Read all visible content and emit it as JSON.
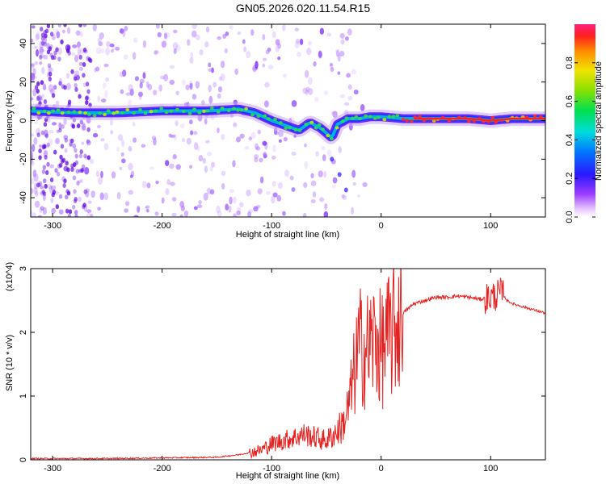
{
  "page_title": "GN05.2026.020.11.54.R15",
  "colors": {
    "snr_line": "#e52222",
    "spectrogram_low": "#7a1cff",
    "spectrogram_high": "#ff0000"
  },
  "chart_data": [
    {
      "type": "heatmap",
      "name": "spectrogram",
      "xlabel": "Height of straight line (km)",
      "ylabel": "Frequency (Hz)",
      "xlim": [
        -320,
        150
      ],
      "ylim": [
        -50,
        50
      ],
      "xticks": [
        -300,
        -200,
        -100,
        0,
        100
      ],
      "yticks": [
        40,
        20,
        0,
        -20,
        -40
      ],
      "colorbar": {
        "label": "Normalized spectral amplitude",
        "range": [
          0.0,
          1.0
        ],
        "ticks": [
          0.0,
          0.2,
          0.4,
          0.6,
          0.8
        ]
      },
      "main_trace": {
        "height_km": [
          -320,
          -280,
          -240,
          -200,
          -160,
          -130,
          -115,
          -100,
          -85,
          -75,
          -65,
          -55,
          -45,
          -40,
          -30,
          -20,
          -10,
          0,
          20,
          50,
          80,
          100,
          120,
          150
        ],
        "frequency_hz": [
          5,
          4,
          4,
          5,
          5,
          6,
          4,
          0,
          -3,
          -5,
          -1,
          -4,
          -9,
          -2,
          1,
          1,
          2,
          2,
          1,
          1,
          1,
          0,
          1,
          1
        ]
      }
    },
    {
      "type": "line",
      "name": "snr",
      "xlabel": "Height of straight line (km)",
      "ylabel": "SNR (10 * v/v)",
      "y_scale_label": "(x10^4)",
      "xlim": [
        -320,
        150
      ],
      "ylim": [
        0,
        3
      ],
      "xticks": [
        -300,
        -200,
        -100,
        0,
        100
      ],
      "yticks": [
        0,
        1,
        2,
        3
      ],
      "series": [
        {
          "name": "SNR",
          "x": [
            -320,
            -250,
            -200,
            -150,
            -130,
            -110,
            -100,
            -90,
            -80,
            -70,
            -60,
            -50,
            -40,
            -35,
            -30,
            -25,
            -20,
            -15,
            -10,
            -5,
            0,
            5,
            10,
            15,
            20,
            30,
            40,
            50,
            60,
            70,
            80,
            90,
            100,
            105,
            110,
            115,
            120,
            130,
            140,
            150
          ],
          "y": [
            0.02,
            0.02,
            0.03,
            0.04,
            0.08,
            0.15,
            0.25,
            0.3,
            0.35,
            0.4,
            0.35,
            0.3,
            0.45,
            0.55,
            0.8,
            1.3,
            1.8,
            1.7,
            1.8,
            1.9,
            1.7,
            1.85,
            2.0,
            2.15,
            2.3,
            2.45,
            2.5,
            2.55,
            2.55,
            2.57,
            2.55,
            2.52,
            2.55,
            2.58,
            2.62,
            2.5,
            2.45,
            2.4,
            2.35,
            2.3
          ]
        }
      ]
    }
  ]
}
